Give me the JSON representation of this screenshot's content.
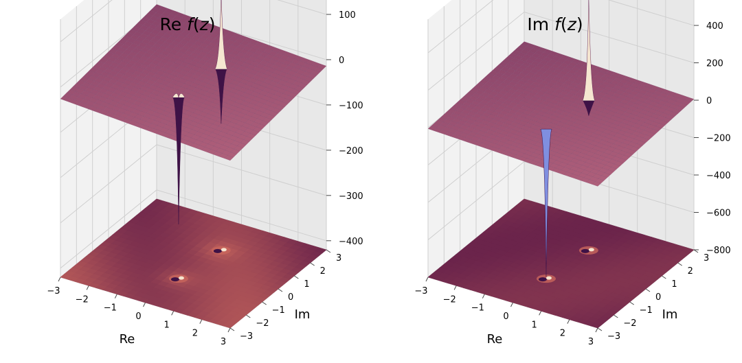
{
  "colors": {
    "pane_left": "#f2f2f2",
    "pane_right": "#e8e8e8",
    "pane_floor": "#e2e2e2",
    "grid": "#cfcfcf",
    "surface_light": "#c06c82",
    "surface_dark": "#6b2e5c",
    "contour_light": "#c9675c",
    "contour_dark": "#5a1848",
    "spike_light": "#f5e6d0",
    "spike_dark": "#3e1246",
    "spike_blue": "#7f8fe0"
  },
  "chart_data": [
    {
      "type": "surface3d",
      "title": "Re f(z)",
      "title_prefix": "Re ",
      "title_var": "f",
      "title_paren_open": "(",
      "title_arg": "z",
      "title_paren_close": ")",
      "xlabel": "Re",
      "ylabel": "Im",
      "x_ticks": [
        "−3",
        "−2",
        "−1",
        "0",
        "1",
        "2",
        "3"
      ],
      "y_ticks": [
        "−3",
        "−2",
        "−1",
        "0",
        "1",
        "2",
        "3"
      ],
      "z_ticks": [
        "100",
        "0",
        "−100",
        "−200",
        "−300",
        "−400"
      ],
      "xlim": [
        -3,
        3
      ],
      "ylim": [
        -3,
        3
      ],
      "zlim": [
        -420,
        150
      ],
      "z_tick_values": [
        100,
        0,
        -100,
        -200,
        -300,
        -400
      ],
      "surface_level": -20,
      "contour_floor_level": -420,
      "singularities": [
        {
          "re": 0.3,
          "im": 1.2,
          "z_max": 150,
          "z_min": -140
        },
        {
          "re": 0.1,
          "im": -1.1,
          "z_max": -20,
          "z_min": -300
        }
      ],
      "grid": true
    },
    {
      "type": "surface3d",
      "title": "Im f(z)",
      "title_prefix": "Im ",
      "title_var": "f",
      "title_paren_open": "(",
      "title_arg": "z",
      "title_paren_close": ")",
      "xlabel": "Re",
      "ylabel": "Im",
      "x_ticks": [
        "−3",
        "−2",
        "−1",
        "0",
        "1",
        "2",
        "3"
      ],
      "y_ticks": [
        "−3",
        "−2",
        "−1",
        "0",
        "1",
        "2",
        "3"
      ],
      "z_ticks": [
        "400",
        "200",
        "0",
        "−200",
        "−400",
        "−600",
        "−800"
      ],
      "xlim": [
        -3,
        3
      ],
      "ylim": [
        -3,
        3
      ],
      "zlim": [
        -800,
        580
      ],
      "z_tick_values": [
        400,
        200,
        0,
        -200,
        -400,
        -600,
        -800
      ],
      "surface_level": 0,
      "contour_floor_level": -800,
      "singularities": [
        {
          "re": 0.3,
          "im": 1.2,
          "z_max": 560,
          "z_min": -80
        },
        {
          "re": 0.1,
          "im": -1.1,
          "z_max": -420,
          "z_min": -790
        }
      ],
      "grid": true
    }
  ]
}
